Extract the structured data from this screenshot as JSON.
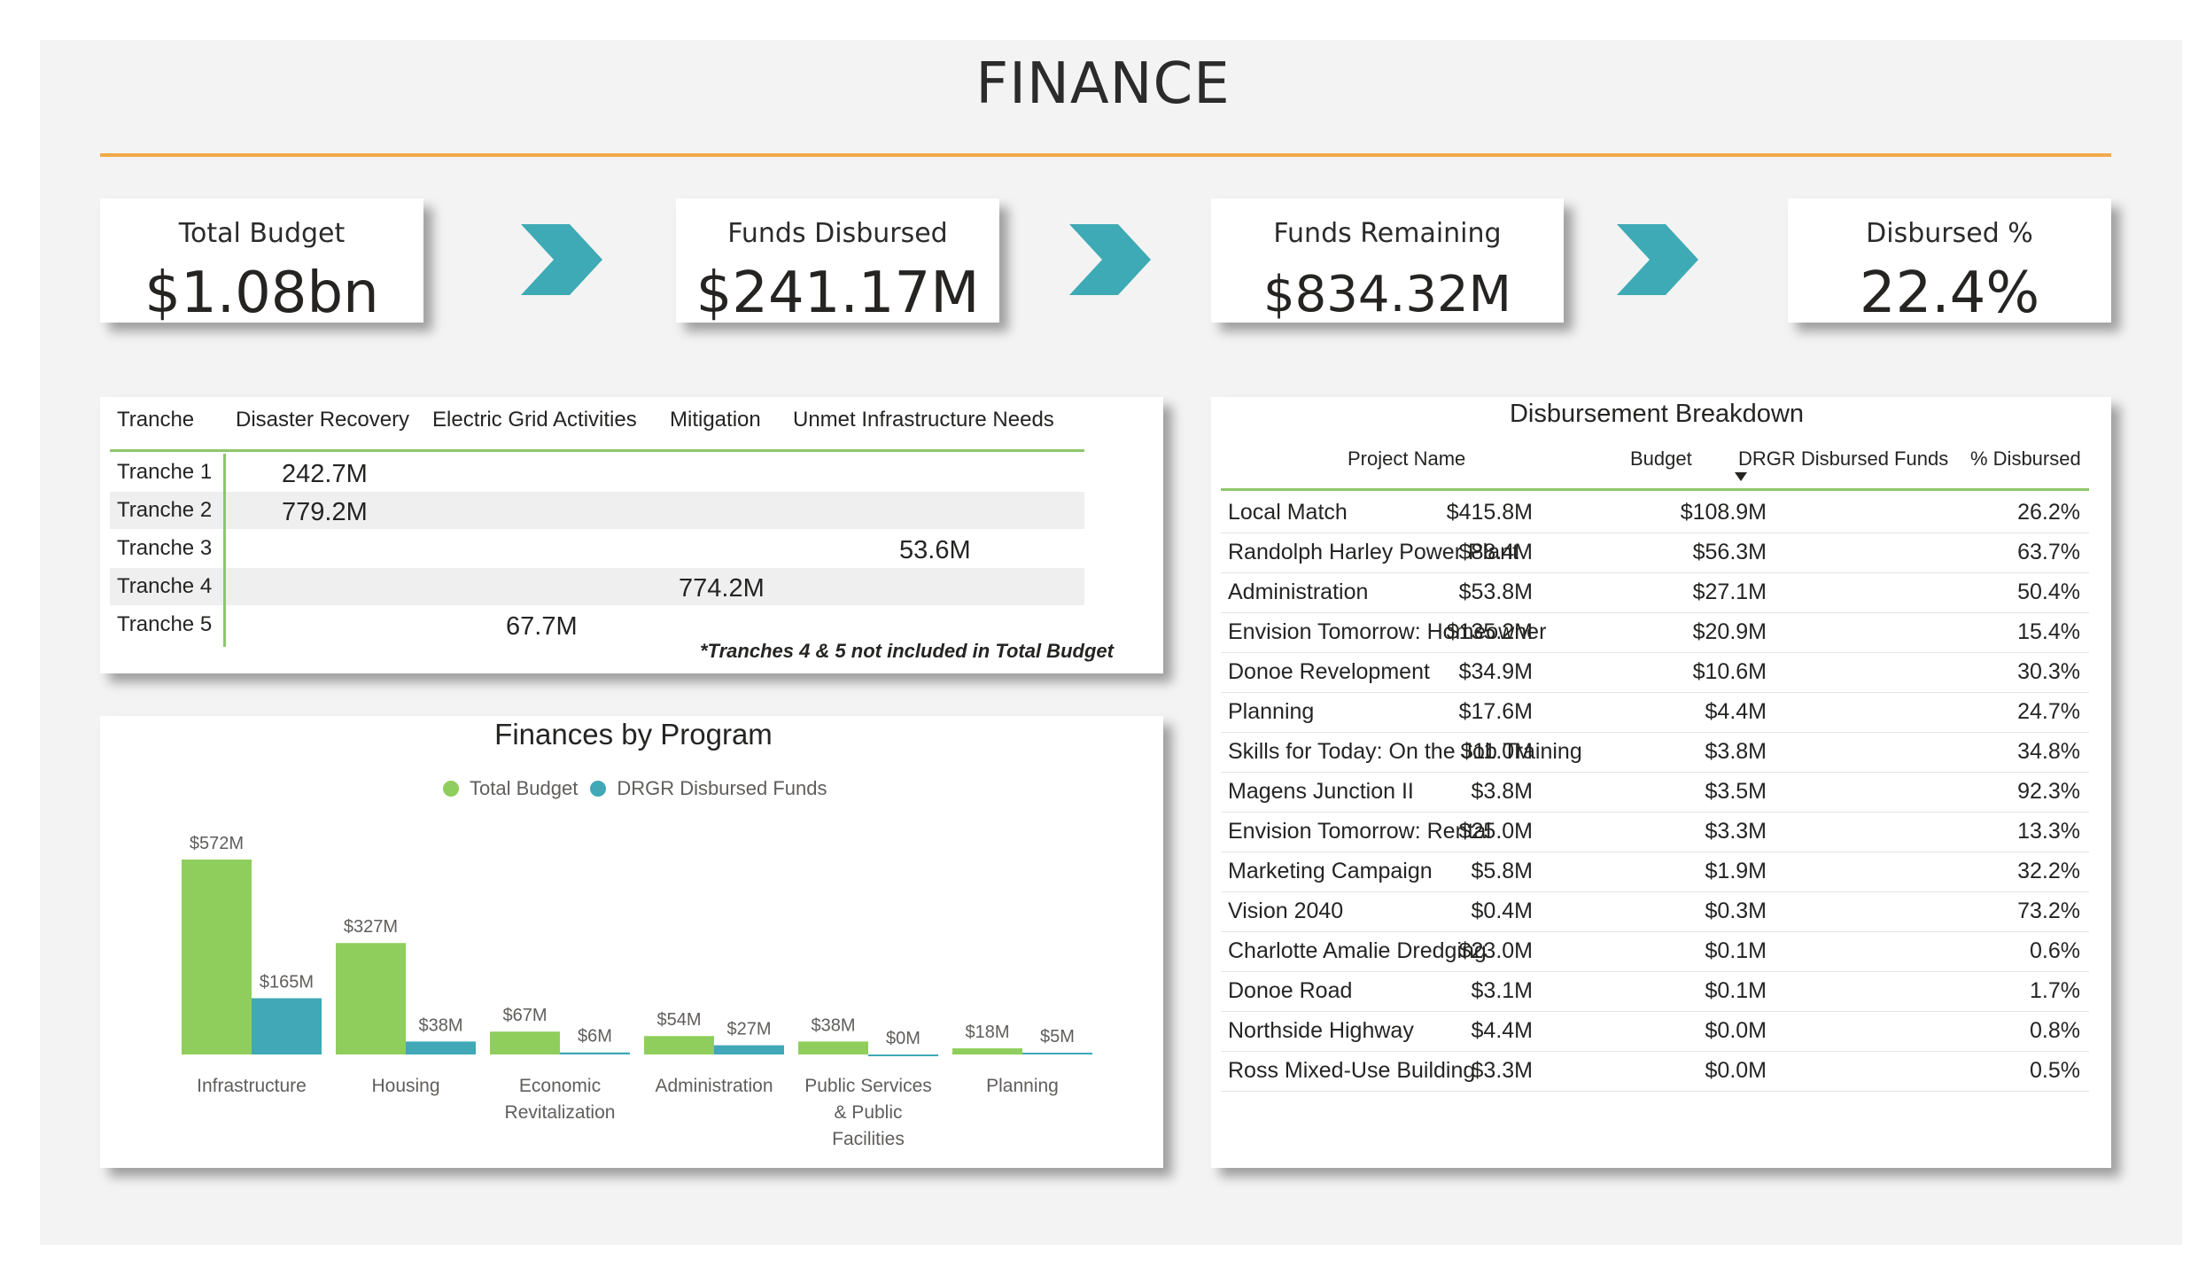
{
  "page": {
    "title": "FINANCE"
  },
  "kpis": [
    {
      "label": "Total Budget",
      "value": "$1.08bn"
    },
    {
      "label": "Funds Disbursed",
      "value": "$241.17M"
    },
    {
      "label": "Funds Remaining",
      "value": "$834.32M"
    },
    {
      "label": "Disbursed %",
      "value": "22.4%"
    }
  ],
  "colors": {
    "accent_rule": "#f2a94a",
    "chevron": "#3eaab5",
    "green": "#8fce5c",
    "teal": "#40a8b6",
    "table_rule": "#8dc66b"
  },
  "tranche_matrix": {
    "headers": [
      "Tranche",
      "Disaster Recovery",
      "Electric Grid Activities",
      "Mitigation",
      "Unmet Infrastructure Needs"
    ],
    "rows": [
      {
        "name": "Tranche 1",
        "value": "242.7M",
        "column": "Disaster Recovery"
      },
      {
        "name": "Tranche 2",
        "value": "779.2M",
        "column": "Disaster Recovery"
      },
      {
        "name": "Tranche 3",
        "value": "53.6M",
        "column": "Unmet Infrastructure Needs"
      },
      {
        "name": "Tranche 4",
        "value": "774.2M",
        "column": "Mitigation"
      },
      {
        "name": "Tranche 5",
        "value": "67.7M",
        "column": "Electric Grid Activities"
      }
    ],
    "note": "*Tranches 4 & 5 not included in Total Budget"
  },
  "chart_data": {
    "type": "bar",
    "title": "Finances by Program",
    "categories": [
      "Infrastructure",
      "Housing",
      "Economic Revitalization",
      "Administration",
      "Public Services & Public Facilities",
      "Planning"
    ],
    "category_lines": [
      [
        "Infrastructure"
      ],
      [
        "Housing"
      ],
      [
        "Economic",
        "Revitalization"
      ],
      [
        "Administration"
      ],
      [
        "Public Services",
        "& Public",
        "Facilities"
      ],
      [
        "Planning"
      ]
    ],
    "series": [
      {
        "name": "Total Budget",
        "values": [
          572,
          327,
          67,
          54,
          38,
          18
        ],
        "labels": [
          "$572M",
          "$327M",
          "$67M",
          "$54M",
          "$38M",
          "$18M"
        ],
        "color": "#8fce5c"
      },
      {
        "name": "DRGR Disbursed Funds",
        "values": [
          165,
          38,
          6,
          27,
          0,
          5
        ],
        "labels": [
          "$165M",
          "$38M",
          "$6M",
          "$27M",
          "$0M",
          "$5M"
        ],
        "color": "#40a8b6"
      }
    ],
    "unit": "$M",
    "ylim": [
      0,
      600
    ],
    "legend": "top-center",
    "grid": false
  },
  "disbursement": {
    "title": "Disbursement Breakdown",
    "headers": [
      "Project Name",
      "Budget",
      "DRGR Disbursed Funds",
      "% Disbursed"
    ],
    "sort_icon": "sort-desc-icon",
    "rows": [
      [
        "Local Match",
        "$415.8M",
        "$108.9M",
        "26.2%"
      ],
      [
        "Randolph Harley Power Plant",
        "$88.4M",
        "$56.3M",
        "63.7%"
      ],
      [
        "Administration",
        "$53.8M",
        "$27.1M",
        "50.4%"
      ],
      [
        "Envision Tomorrow: Homeowner",
        "$135.2M",
        "$20.9M",
        "15.4%"
      ],
      [
        "Donoe Revelopment",
        "$34.9M",
        "$10.6M",
        "30.3%"
      ],
      [
        "Planning",
        "$17.6M",
        "$4.4M",
        "24.7%"
      ],
      [
        "Skills for Today: On the Job Training",
        "$11.0M",
        "$3.8M",
        "34.8%"
      ],
      [
        "Magens Junction II",
        "$3.8M",
        "$3.5M",
        "92.3%"
      ],
      [
        "Envision Tomorrow: Rental",
        "$25.0M",
        "$3.3M",
        "13.3%"
      ],
      [
        "Marketing Campaign",
        "$5.8M",
        "$1.9M",
        "32.2%"
      ],
      [
        "Vision 2040",
        "$0.4M",
        "$0.3M",
        "73.2%"
      ],
      [
        "Charlotte Amalie Dredging",
        "$23.0M",
        "$0.1M",
        "0.6%"
      ],
      [
        "Donoe Road",
        "$3.1M",
        "$0.1M",
        "1.7%"
      ],
      [
        "Northside Highway",
        "$4.4M",
        "$0.0M",
        "0.8%"
      ],
      [
        "Ross Mixed-Use Building",
        "$3.3M",
        "$0.0M",
        "0.5%"
      ]
    ]
  }
}
